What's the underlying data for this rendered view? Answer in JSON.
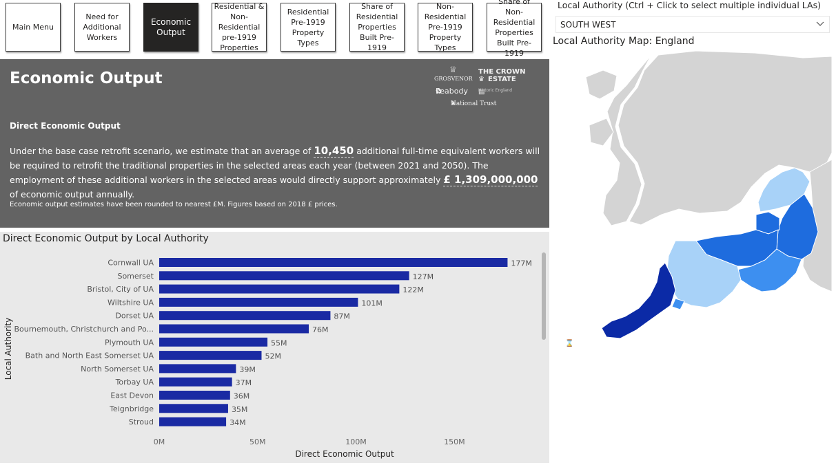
{
  "nav": {
    "main_menu": "Main Menu",
    "need_workers": "Need for Additional Workers",
    "economic_output": "Economic Output",
    "res_nonres_pre1919": "Residential & Non-Residential pre-1919 Properties",
    "res_pre1919_types": "Residential Pre-1919 Property Types",
    "share_res_pre1919": "Share of Residential Properties Built Pre-1919",
    "nonres_pre1919_types": "Non-Residential Pre-1919 Property Types",
    "share_nonres_pre1919": "Share of Non-Residential Properties Built Pre-1919"
  },
  "header": {
    "title": "Economic Output",
    "subtitle": "Direct Economic Output",
    "para_1": "Under the base case retrofit scenario, we estimate that an average of",
    "workers_value": "10,450",
    "para_2": "additional full-time equivalent workers will be required to retrofit the traditional properties in the selected areas each year (between 2021 and 2050). The employment of these additional workers in the selected areas would directly support approximately",
    "output_value": "£ 1,309,000,000",
    "para_3": "of economic output annually.",
    "note": "Economic output estimates have been rounded to nearest £M. Figures based on 2018 £ prices.",
    "logos": {
      "grosvenor": "GROSVENOR",
      "crown_1": "THE CROWN",
      "crown_2": "ESTATE",
      "peabody": "Peabody",
      "historic_england": "Historic England",
      "national_trust": "National Trust"
    }
  },
  "chart_data": {
    "type": "bar",
    "orientation": "horizontal",
    "title": "Direct Economic Output by Local Authority",
    "xlabel": "Direct Economic Output",
    "ylabel": "Local Authority",
    "categories": [
      "Cornwall UA",
      "Somerset",
      "Bristol, City of UA",
      "Wiltshire UA",
      "Dorset UA",
      "Bournemouth, Christchurch and Po...",
      "Plymouth UA",
      "Bath and North East Somerset UA",
      "North Somerset UA",
      "Torbay UA",
      "East Devon",
      "Teignbridge",
      "Stroud"
    ],
    "values": [
      177,
      127,
      122,
      101,
      87,
      76,
      55,
      52,
      39,
      37,
      36,
      35,
      34
    ],
    "value_labels": [
      "177M",
      "127M",
      "122M",
      "101M",
      "87M",
      "76M",
      "55M",
      "52M",
      "39M",
      "37M",
      "36M",
      "35M",
      "34M"
    ],
    "xticks": [
      0,
      50,
      100,
      150
    ],
    "xtick_labels": [
      "0M",
      "50M",
      "100M",
      "150M"
    ],
    "xlim": [
      0,
      180
    ],
    "unit": "£M",
    "grid": false,
    "bar_color": "#1a2aa3"
  },
  "slicer": {
    "label": "Local Authority (Ctrl + Click to select multiple individual LAs)",
    "value": "SOUTH WEST"
  },
  "map": {
    "title": "Local Authority Map: England",
    "colors": {
      "base": "#d4d4d4",
      "light": "#a8d2f8",
      "medium": "#3d8ff0",
      "strong": "#1e6cde",
      "darkest": "#0b2aa6"
    }
  },
  "colors": {
    "header_bg": "#636363",
    "chart_bg": "#e9e9e9",
    "active_button_bg": "#252423"
  }
}
